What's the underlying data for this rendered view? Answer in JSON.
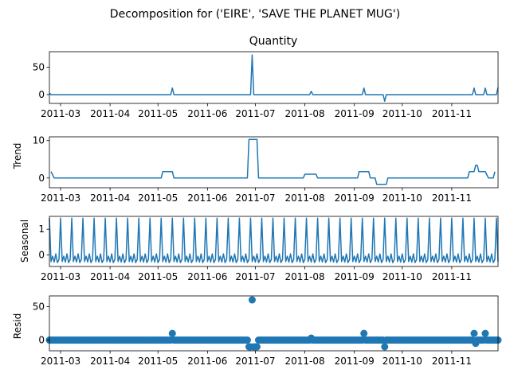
{
  "figure": {
    "suptitle": "Decomposition for ('EIRE', 'SAVE THE PLANET MUG')",
    "date_ticks": [
      "2011-03",
      "2011-04",
      "2011-05",
      "2011-06",
      "2011-07",
      "2011-08",
      "2011-09",
      "2011-10",
      "2011-11"
    ],
    "line_color": "#1f77b4"
  },
  "chart_data": [
    {
      "type": "line",
      "title": "Quantity",
      "ylabel": "",
      "x_range": [
        "2011-02-22",
        "2011-11-30"
      ],
      "ylim": [
        -16,
        78
      ],
      "yticks": [
        0,
        50
      ],
      "points": [
        [
          "2011-02-22",
          3
        ],
        [
          "2011-02-23",
          0
        ],
        [
          "2011-05-09",
          0
        ],
        [
          "2011-05-10",
          12
        ],
        [
          "2011-05-11",
          0
        ],
        [
          "2011-06-28",
          0
        ],
        [
          "2011-06-29",
          72
        ],
        [
          "2011-06-30",
          0
        ],
        [
          "2011-08-04",
          0
        ],
        [
          "2011-08-05",
          6
        ],
        [
          "2011-08-06",
          0
        ],
        [
          "2011-09-06",
          0
        ],
        [
          "2011-09-07",
          12
        ],
        [
          "2011-09-08",
          0
        ],
        [
          "2011-09-19",
          0
        ],
        [
          "2011-09-20",
          -12
        ],
        [
          "2011-09-21",
          0
        ],
        [
          "2011-11-14",
          0
        ],
        [
          "2011-11-15",
          12
        ],
        [
          "2011-11-16",
          0
        ],
        [
          "2011-11-21",
          0
        ],
        [
          "2011-11-22",
          12
        ],
        [
          "2011-11-23",
          0
        ],
        [
          "2011-11-29",
          0
        ],
        [
          "2011-11-30",
          13
        ]
      ]
    },
    {
      "type": "line",
      "title": "",
      "ylabel": "Trend",
      "x_range": [
        "2011-02-22",
        "2011-11-30"
      ],
      "ylim": [
        -2.6,
        11.0
      ],
      "yticks": [
        0,
        10
      ],
      "points": [
        [
          "2011-02-23",
          1.7
        ],
        [
          "2011-02-25",
          0
        ],
        [
          "2011-05-03",
          0
        ],
        [
          "2011-05-04",
          1.7
        ],
        [
          "2011-05-10",
          1.7
        ],
        [
          "2011-05-11",
          0
        ],
        [
          "2011-06-26",
          0
        ],
        [
          "2011-06-27",
          10.3
        ],
        [
          "2011-07-02",
          10.3
        ],
        [
          "2011-07-03",
          0
        ],
        [
          "2011-07-31",
          0
        ],
        [
          "2011-08-01",
          1.0
        ],
        [
          "2011-08-08",
          1.0
        ],
        [
          "2011-08-09",
          0
        ],
        [
          "2011-09-03",
          0
        ],
        [
          "2011-09-04",
          1.7
        ],
        [
          "2011-09-10",
          1.7
        ],
        [
          "2011-09-11",
          0
        ],
        [
          "2011-09-14",
          0
        ],
        [
          "2011-09-15",
          -1.7
        ],
        [
          "2011-09-21",
          -1.7
        ],
        [
          "2011-09-22",
          0
        ],
        [
          "2011-11-11",
          0
        ],
        [
          "2011-11-12",
          1.7
        ],
        [
          "2011-11-15",
          1.7
        ],
        [
          "2011-11-16",
          3.4
        ],
        [
          "2011-11-17",
          3.4
        ],
        [
          "2011-11-18",
          1.7
        ],
        [
          "2011-11-22",
          1.7
        ],
        [
          "2011-11-24",
          0
        ],
        [
          "2011-11-27",
          0
        ],
        [
          "2011-11-28",
          1.7
        ]
      ]
    },
    {
      "type": "line",
      "title": "",
      "ylabel": "Seasonal",
      "x_range": [
        "2011-02-22",
        "2011-11-30"
      ],
      "ylim": [
        -0.45,
        1.5
      ],
      "yticks": [
        0,
        1
      ],
      "period_days": 7,
      "weekly_pattern": [
        1.43,
        -0.26,
        -0.05,
        -0.28,
        0.04,
        -0.3,
        -0.18
      ],
      "start_date": "2011-02-22"
    },
    {
      "type": "scatter",
      "title": "",
      "ylabel": "Resid",
      "x_range": [
        "2011-02-22",
        "2011-11-30"
      ],
      "ylim": [
        -16,
        66
      ],
      "yticks": [
        0,
        50
      ],
      "outliers": [
        [
          "2011-05-10",
          10
        ],
        [
          "2011-06-27",
          -10
        ],
        [
          "2011-06-28",
          -10
        ],
        [
          "2011-06-29",
          60
        ],
        [
          "2011-06-30",
          -10
        ],
        [
          "2011-07-01",
          -10
        ],
        [
          "2011-07-02",
          -10
        ],
        [
          "2011-08-05",
          3
        ],
        [
          "2011-09-07",
          10
        ],
        [
          "2011-09-20",
          -10
        ],
        [
          "2011-11-15",
          10
        ],
        [
          "2011-11-16",
          -5
        ],
        [
          "2011-11-22",
          10
        ]
      ]
    }
  ]
}
